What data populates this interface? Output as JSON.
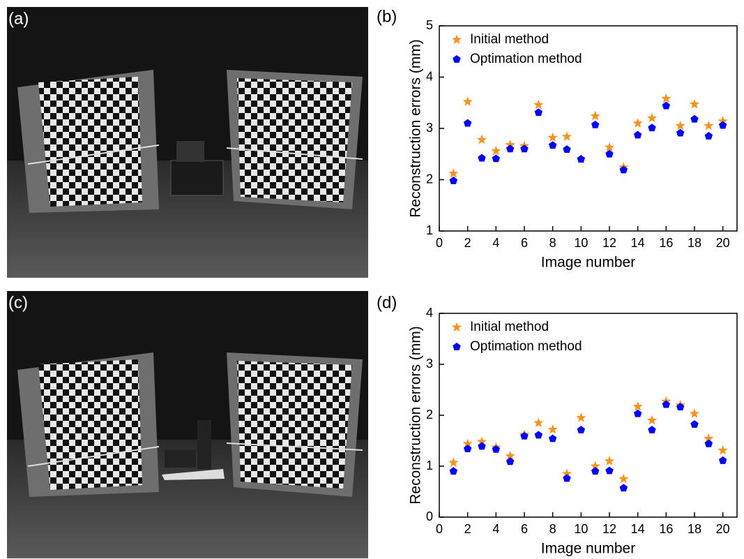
{
  "photo_labels": [
    "(a)",
    "(c)"
  ],
  "chart_data": [
    {
      "type": "scatter",
      "panel_label": "(b)",
      "xlabel": "Image number",
      "ylabel": "Reconstruction errors (mm)",
      "x": [
        1,
        2,
        3,
        4,
        5,
        6,
        7,
        8,
        9,
        10,
        11,
        12,
        13,
        14,
        15,
        16,
        17,
        18,
        19,
        20
      ],
      "series": [
        {
          "name": "Initial method",
          "color": "#f7931e",
          "marker": "star",
          "values": [
            2.12,
            3.52,
            2.78,
            2.56,
            2.68,
            2.66,
            3.46,
            2.82,
            2.84,
            2.4,
            3.24,
            2.63,
            2.24,
            3.1,
            3.2,
            3.58,
            3.05,
            3.47,
            3.05,
            3.14
          ]
        },
        {
          "name": "Optimation method",
          "color": "#0000ff",
          "marker": "pentagon",
          "values": [
            1.98,
            3.1,
            2.42,
            2.41,
            2.6,
            2.6,
            3.31,
            2.67,
            2.59,
            2.4,
            3.07,
            2.5,
            2.19,
            2.87,
            3.01,
            3.44,
            2.91,
            3.18,
            2.85,
            3.06
          ]
        }
      ],
      "xlim": [
        0,
        21
      ],
      "xticks": [
        0,
        2,
        4,
        6,
        8,
        10,
        12,
        14,
        16,
        18,
        20
      ],
      "ylim": [
        1,
        5
      ],
      "yticks": [
        1,
        2,
        3,
        4,
        5
      ],
      "legend": "upper left"
    },
    {
      "type": "scatter",
      "panel_label": "(d)",
      "xlabel": "Image number",
      "ylabel": "Reconstruction errors (mm)",
      "x": [
        1,
        2,
        3,
        4,
        5,
        6,
        7,
        8,
        9,
        10,
        11,
        12,
        13,
        14,
        15,
        16,
        17,
        18,
        19,
        20
      ],
      "series": [
        {
          "name": "Initial method",
          "color": "#f7931e",
          "marker": "star",
          "values": [
            1.07,
            1.44,
            1.48,
            1.37,
            1.2,
            1.62,
            1.85,
            1.72,
            0.85,
            1.95,
            1.0,
            1.1,
            0.75,
            2.17,
            1.9,
            2.27,
            2.2,
            2.03,
            1.54,
            1.31
          ]
        },
        {
          "name": "Optimation method",
          "color": "#0000ff",
          "marker": "pentagon",
          "values": [
            0.9,
            1.34,
            1.39,
            1.33,
            1.09,
            1.59,
            1.61,
            1.54,
            0.76,
            1.71,
            0.9,
            0.91,
            0.57,
            2.03,
            1.71,
            2.21,
            2.16,
            1.82,
            1.44,
            1.11
          ]
        }
      ],
      "xlim": [
        0,
        21
      ],
      "xticks": [
        0,
        2,
        4,
        6,
        8,
        10,
        12,
        14,
        16,
        18,
        20
      ],
      "ylim": [
        0,
        4
      ],
      "yticks": [
        0,
        1,
        2,
        3,
        4
      ],
      "legend": "upper left"
    }
  ]
}
